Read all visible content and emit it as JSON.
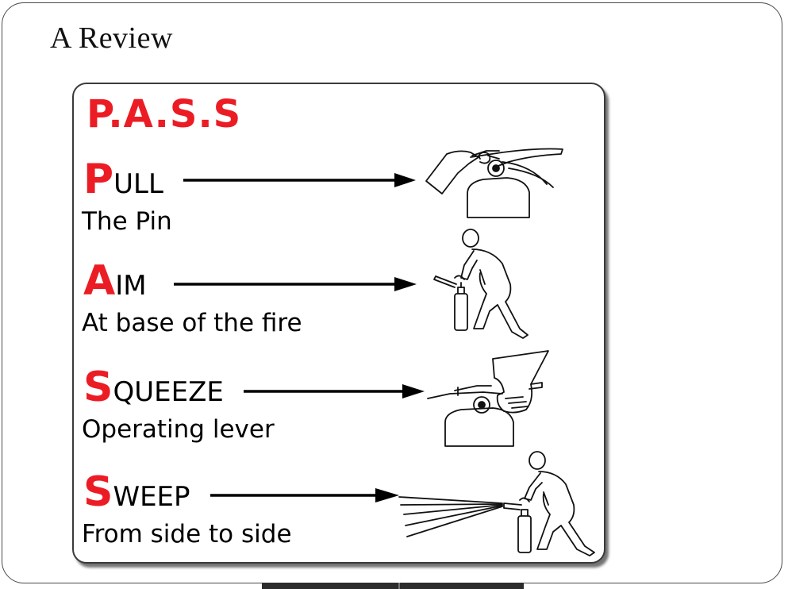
{
  "slide": {
    "title": "A Review"
  },
  "card": {
    "heading": "P.A.S.S",
    "steps": [
      {
        "initial": "P",
        "rest": "ULL",
        "description": "The Pin",
        "illustration": "extinguisher-pin-pull-icon"
      },
      {
        "initial": "A",
        "rest": "IM",
        "description": "At base of the fire",
        "illustration": "person-aiming-extinguisher-icon"
      },
      {
        "initial": "S",
        "rest": "QUEEZE",
        "description": "Operating lever",
        "illustration": "hand-squeezing-lever-icon"
      },
      {
        "initial": "S",
        "rest": "WEEP",
        "description": "From side to side",
        "illustration": "person-sweeping-spray-icon"
      }
    ]
  },
  "colors": {
    "accent_red": "#ec1c24",
    "text": "#000000",
    "border": "#3a3a3a"
  }
}
